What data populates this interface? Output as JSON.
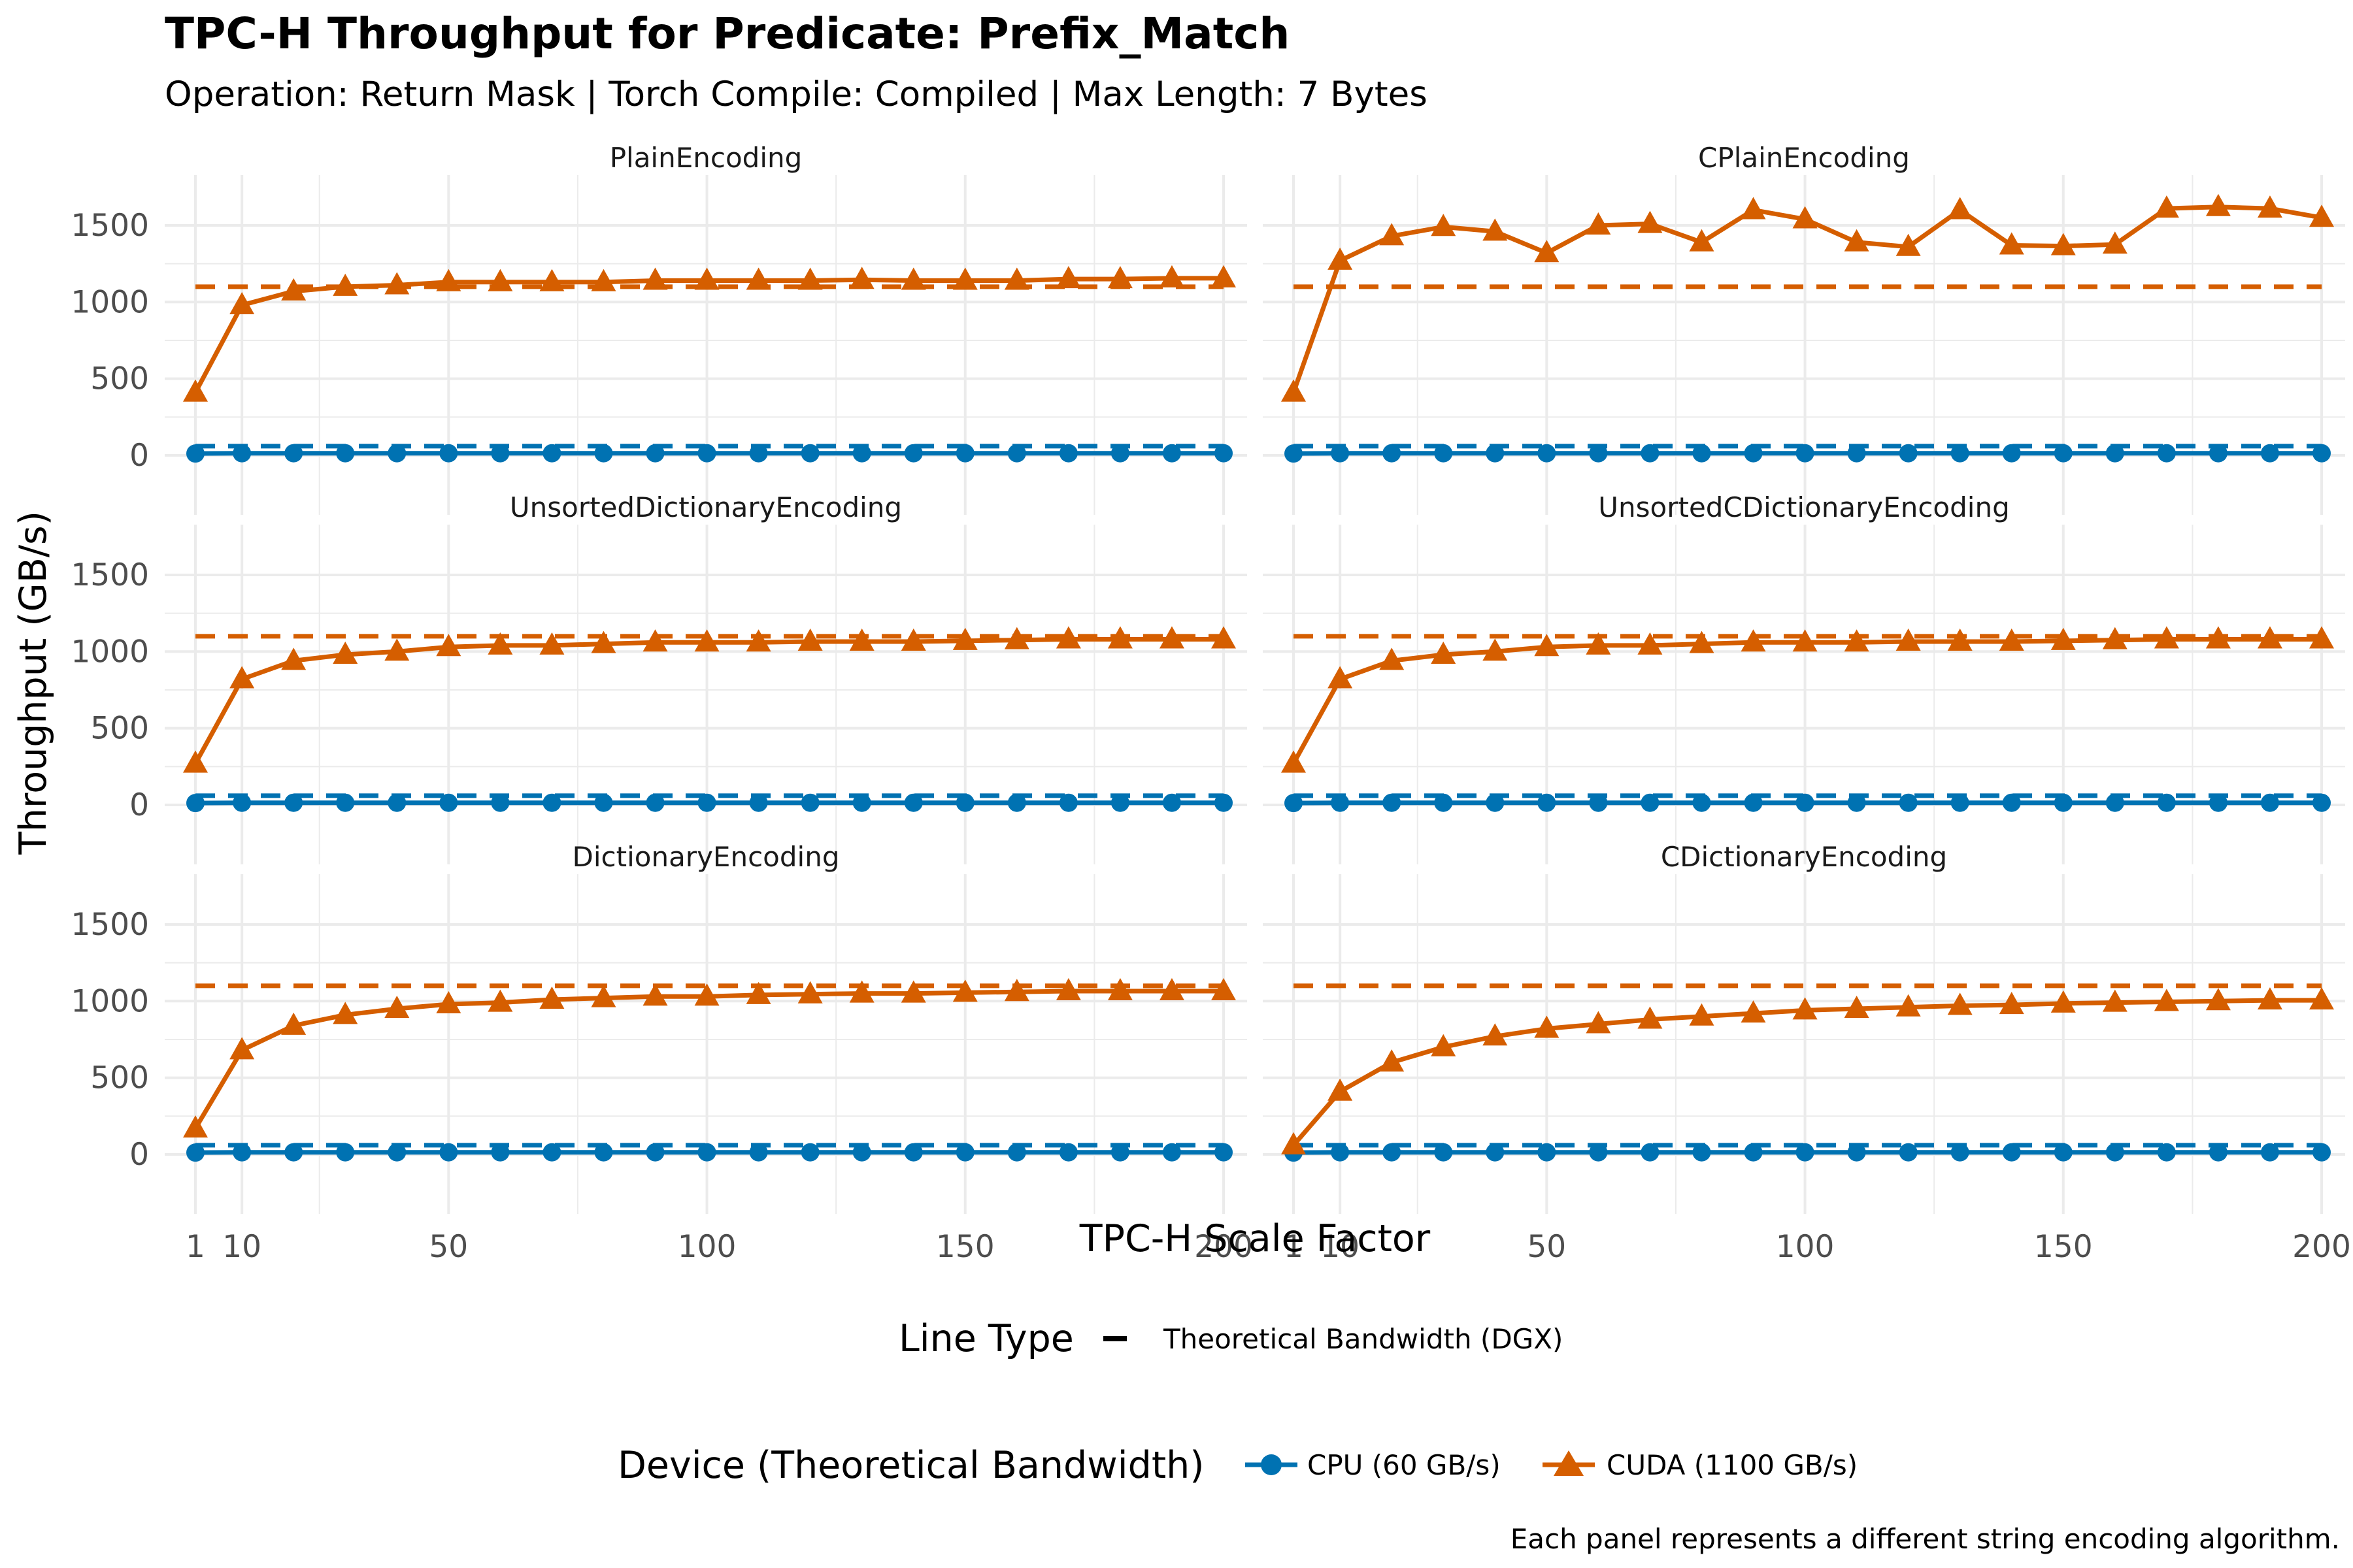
{
  "title": "TPC-H Throughput for Predicate: Prefix_Match",
  "subtitle": "Operation: Return Mask | Torch Compile: Compiled | Max Length: 7 Bytes",
  "caption": "Each panel represents a different string encoding algorithm.",
  "colors": {
    "cpu": "#0072B2",
    "cuda": "#D55E00",
    "grid": "#ebebeb"
  },
  "chart_data": {
    "type": "line",
    "facets": "panel (encoding)",
    "xlabel": "TPC-H Scale Factor",
    "ylabel": "Throughput (GB/s)",
    "xlim": [
      1,
      200
    ],
    "ylim": [
      0,
      1600
    ],
    "x_ticks": [
      1,
      10,
      50,
      100,
      150,
      200
    ],
    "y_ticks": [
      0,
      500,
      1000,
      1500
    ],
    "x": [
      1,
      10,
      20,
      30,
      40,
      50,
      60,
      70,
      80,
      90,
      100,
      110,
      120,
      130,
      140,
      150,
      160,
      170,
      180,
      190,
      200
    ],
    "reference_lines": {
      "cpu": 60,
      "cuda": 1100
    },
    "legend_linetype": {
      "title": "Line Type",
      "label": "Theoretical Bandwidth (DGX)"
    },
    "legend_device": {
      "title": "Device (Theoretical Bandwidth)",
      "cpu_label": "CPU (60 GB/s)",
      "cuda_label": "CUDA (1100 GB/s)",
      "placement": "bottom"
    },
    "panels": [
      {
        "name": "PlainEncoding",
        "cpu": [
          12,
          14,
          14,
          14,
          14,
          14,
          14,
          14,
          14,
          14,
          14,
          14,
          14,
          14,
          14,
          14,
          14,
          14,
          14,
          14,
          14
        ],
        "cuda": [
          410,
          980,
          1070,
          1100,
          1110,
          1130,
          1130,
          1130,
          1130,
          1140,
          1140,
          1140,
          1140,
          1145,
          1140,
          1140,
          1140,
          1150,
          1150,
          1155,
          1155
        ]
      },
      {
        "name": "CPlainEncoding",
        "cpu": [
          12,
          14,
          14,
          14,
          14,
          14,
          14,
          14,
          14,
          14,
          14,
          14,
          14,
          14,
          14,
          14,
          14,
          14,
          14,
          14,
          14
        ],
        "cuda": [
          410,
          1270,
          1430,
          1490,
          1460,
          1320,
          1500,
          1510,
          1390,
          1600,
          1540,
          1390,
          1360,
          1600,
          1370,
          1365,
          1375,
          1610,
          1620,
          1610,
          1550
        ]
      },
      {
        "name": "UnsortedDictionaryEncoding",
        "cpu": [
          12,
          14,
          14,
          14,
          14,
          14,
          14,
          14,
          14,
          14,
          14,
          14,
          14,
          14,
          14,
          14,
          14,
          14,
          14,
          14,
          14
        ],
        "cuda": [
          270,
          820,
          940,
          980,
          1000,
          1030,
          1040,
          1040,
          1050,
          1060,
          1060,
          1060,
          1065,
          1065,
          1065,
          1070,
          1075,
          1080,
          1080,
          1080,
          1080
        ]
      },
      {
        "name": "UnsortedCDictionaryEncoding",
        "cpu": [
          12,
          14,
          14,
          14,
          14,
          14,
          14,
          14,
          14,
          14,
          14,
          14,
          14,
          14,
          14,
          14,
          14,
          14,
          14,
          14,
          14
        ],
        "cuda": [
          270,
          820,
          940,
          980,
          1000,
          1030,
          1040,
          1040,
          1050,
          1060,
          1060,
          1060,
          1065,
          1065,
          1065,
          1070,
          1075,
          1080,
          1080,
          1080,
          1080
        ]
      },
      {
        "name": "DictionaryEncoding",
        "cpu": [
          12,
          14,
          14,
          14,
          14,
          14,
          14,
          14,
          14,
          14,
          14,
          14,
          14,
          14,
          14,
          14,
          14,
          14,
          14,
          14,
          14
        ],
        "cuda": [
          170,
          680,
          840,
          910,
          950,
          980,
          990,
          1010,
          1020,
          1030,
          1030,
          1040,
          1045,
          1050,
          1050,
          1055,
          1060,
          1065,
          1065,
          1065,
          1065
        ]
      },
      {
        "name": "CDictionaryEncoding",
        "cpu": [
          12,
          14,
          14,
          14,
          14,
          14,
          14,
          14,
          14,
          14,
          14,
          14,
          14,
          14,
          14,
          14,
          14,
          14,
          14,
          14,
          14
        ],
        "cuda": [
          60,
          410,
          600,
          700,
          770,
          820,
          850,
          880,
          900,
          920,
          940,
          950,
          960,
          970,
          975,
          985,
          990,
          995,
          1000,
          1005,
          1005
        ]
      }
    ]
  }
}
